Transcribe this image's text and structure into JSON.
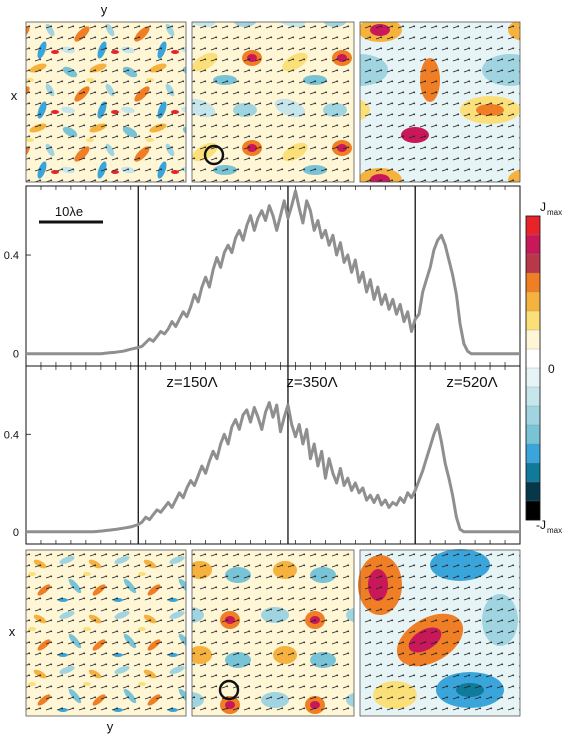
{
  "figure": {
    "top_axis_labels": {
      "y": "y",
      "x": "x"
    },
    "bottom_axis_labels": {
      "x": "x",
      "y": "y"
    },
    "scale_bar_label": "10λe"
  },
  "colorbar": {
    "max_label": "J",
    "max_sub": "max",
    "zero_label": "0",
    "min_label": "-J",
    "min_sub": "max",
    "colors": [
      "#e8242a",
      "#c9185a",
      "#b8384a",
      "#f07e24",
      "#f6b23e",
      "#fbe07a",
      "#fff6d6",
      "#ffffff",
      "#e6f4f6",
      "#c6e6ec",
      "#9fd4e0",
      "#79c3d6",
      "#3aa5da",
      "#0f7a9a",
      "#06384a",
      "#000000"
    ]
  },
  "vertical_markers": [
    "z=150Λ",
    "z=350Λ",
    "z=520Λ"
  ],
  "chart_data": [
    {
      "type": "line",
      "panel": "top",
      "x": [
        0,
        10,
        20,
        30,
        40,
        50,
        60,
        70,
        80,
        90,
        100,
        110,
        120,
        130,
        140,
        150,
        155,
        160,
        165,
        170,
        175,
        180,
        185,
        190,
        195,
        200,
        205,
        210,
        215,
        220,
        225,
        230,
        235,
        240,
        245,
        250,
        255,
        260,
        265,
        270,
        275,
        280,
        285,
        290,
        295,
        300,
        305,
        310,
        315,
        320,
        325,
        330,
        335,
        340,
        345,
        350,
        355,
        360,
        365,
        370,
        375,
        380,
        385,
        390,
        395,
        400,
        405,
        410,
        415,
        420,
        425,
        430,
        435,
        440,
        445,
        450,
        455,
        460,
        465,
        470,
        475,
        480,
        485,
        490,
        495,
        500,
        505,
        510,
        515,
        520,
        525,
        530,
        535,
        540,
        545,
        550,
        555,
        560,
        565,
        570,
        575,
        580,
        585,
        590,
        595,
        600,
        610,
        620,
        640,
        660
      ],
      "y": [
        0,
        0,
        0,
        0,
        0,
        0,
        0,
        0,
        0,
        0,
        0,
        0.003,
        0.006,
        0.01,
        0.018,
        0.025,
        0.03,
        0.045,
        0.06,
        0.05,
        0.07,
        0.09,
        0.08,
        0.1,
        0.13,
        0.11,
        0.14,
        0.17,
        0.15,
        0.19,
        0.24,
        0.21,
        0.27,
        0.31,
        0.27,
        0.34,
        0.39,
        0.35,
        0.41,
        0.44,
        0.41,
        0.47,
        0.5,
        0.46,
        0.52,
        0.56,
        0.5,
        0.55,
        0.58,
        0.54,
        0.6,
        0.56,
        0.5,
        0.56,
        0.62,
        0.55,
        0.6,
        0.66,
        0.59,
        0.53,
        0.62,
        0.58,
        0.5,
        0.54,
        0.47,
        0.5,
        0.44,
        0.48,
        0.4,
        0.45,
        0.37,
        0.4,
        0.33,
        0.38,
        0.29,
        0.33,
        0.25,
        0.3,
        0.22,
        0.27,
        0.2,
        0.24,
        0.18,
        0.22,
        0.16,
        0.2,
        0.13,
        0.17,
        0.09,
        0.14,
        0.16,
        0.25,
        0.3,
        0.35,
        0.42,
        0.46,
        0.48,
        0.44,
        0.38,
        0.32,
        0.24,
        0.12,
        0.04,
        0.01,
        0,
        0,
        0,
        0,
        0,
        0
      ],
      "xlim": [
        0,
        660
      ],
      "ylim": [
        -0.05,
        0.68
      ],
      "yticks": [
        0,
        0.4
      ],
      "ytick_labels": [
        "0",
        "0.4"
      ],
      "vlines": [
        150,
        350,
        520
      ]
    },
    {
      "type": "line",
      "panel": "bottom",
      "x": [
        0,
        10,
        20,
        30,
        40,
        50,
        60,
        70,
        80,
        90,
        100,
        110,
        120,
        130,
        140,
        150,
        155,
        160,
        165,
        170,
        175,
        180,
        185,
        190,
        195,
        200,
        205,
        210,
        215,
        220,
        225,
        230,
        235,
        240,
        245,
        250,
        255,
        260,
        265,
        270,
        275,
        280,
        285,
        290,
        295,
        300,
        305,
        310,
        315,
        320,
        325,
        330,
        335,
        340,
        345,
        350,
        355,
        360,
        365,
        370,
        375,
        380,
        385,
        390,
        395,
        400,
        405,
        410,
        415,
        420,
        425,
        430,
        435,
        440,
        445,
        450,
        455,
        460,
        465,
        470,
        475,
        480,
        485,
        490,
        495,
        500,
        505,
        510,
        515,
        520,
        525,
        530,
        535,
        540,
        545,
        550,
        555,
        560,
        565,
        570,
        575,
        580,
        585,
        590,
        595,
        600,
        610,
        620,
        640,
        660
      ],
      "y": [
        0,
        0,
        0,
        0,
        0,
        0,
        0,
        0,
        0,
        0,
        0.003,
        0.006,
        0.01,
        0.015,
        0.02,
        0.03,
        0.04,
        0.06,
        0.05,
        0.07,
        0.09,
        0.08,
        0.1,
        0.12,
        0.1,
        0.13,
        0.16,
        0.14,
        0.18,
        0.21,
        0.19,
        0.23,
        0.27,
        0.24,
        0.29,
        0.33,
        0.3,
        0.36,
        0.4,
        0.36,
        0.43,
        0.46,
        0.42,
        0.48,
        0.5,
        0.45,
        0.51,
        0.47,
        0.42,
        0.49,
        0.53,
        0.47,
        0.52,
        0.41,
        0.47,
        0.52,
        0.44,
        0.39,
        0.44,
        0.36,
        0.42,
        0.3,
        0.36,
        0.27,
        0.33,
        0.22,
        0.3,
        0.24,
        0.2,
        0.26,
        0.19,
        0.22,
        0.17,
        0.2,
        0.16,
        0.18,
        0.13,
        0.15,
        0.12,
        0.15,
        0.11,
        0.13,
        0.1,
        0.12,
        0.11,
        0.14,
        0.12,
        0.16,
        0.14,
        0.17,
        0.21,
        0.25,
        0.3,
        0.35,
        0.4,
        0.44,
        0.37,
        0.28,
        0.22,
        0.15,
        0.06,
        0.01,
        0,
        0,
        0,
        0,
        0,
        0,
        0,
        0
      ],
      "xlim": [
        0,
        660
      ],
      "ylim": [
        -0.05,
        0.68
      ],
      "yticks": [
        0,
        0.4
      ],
      "ytick_labels": [
        "0",
        "0.4"
      ],
      "vlines": [
        150,
        350,
        520
      ]
    }
  ]
}
